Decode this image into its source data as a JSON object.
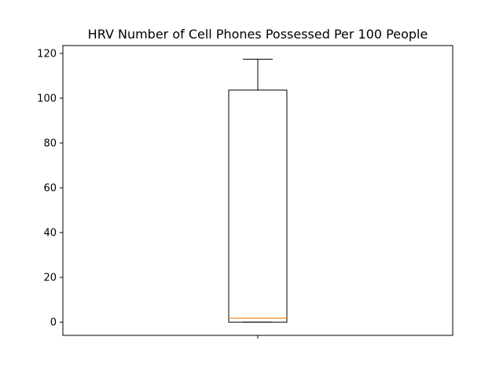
{
  "chart_data": {
    "type": "box",
    "title": "HRV Number of Cell Phones Possessed Per 100 People",
    "xlabel": "",
    "ylabel": "",
    "ylim": [
      -5.9,
      123.5
    ],
    "yticks": [
      0,
      20,
      40,
      60,
      80,
      100,
      120
    ],
    "grid": false,
    "boxes": [
      {
        "whisker_low": 0,
        "q1": 0,
        "median": 1.8,
        "q3": 103.6,
        "whisker_high": 117.4
      }
    ],
    "colors": {
      "box": "#000000",
      "median": "#ff7f0e",
      "axes": "#000000"
    }
  }
}
